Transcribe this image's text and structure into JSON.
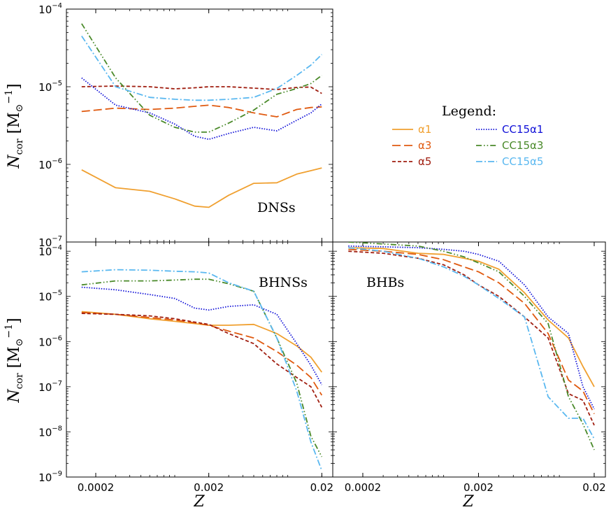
{
  "chart_data": {
    "type": "line",
    "x_scale": "log",
    "y_scale": "log",
    "xlabel": "Z",
    "ylabel": "N_cor [M_⊙^-1]",
    "ylabel_main": "N",
    "ylabel_sub": "cor",
    "ylabel_unit_open": "[M",
    "ylabel_unit_sub": "⊙",
    "ylabel_unit_sup": "−1",
    "ylabel_unit_close": "]",
    "x_ticks": [
      {
        "value": 0.0002,
        "label": "0.0002"
      },
      {
        "value": 0.002,
        "label": "0.002"
      },
      {
        "value": 0.02,
        "label": "0.02"
      }
    ],
    "legend": {
      "title": "Legend:",
      "entries": [
        {
          "key": "a1",
          "label": "α1",
          "color": "#f0a030",
          "dash": "solid"
        },
        {
          "key": "a3",
          "label": "α3",
          "color": "#e05a10",
          "dash": "long-dash"
        },
        {
          "key": "a5",
          "label": "α5",
          "color": "#a01e10",
          "dash": "short-dash"
        },
        {
          "key": "c1",
          "label": "CC15α1",
          "color": "#1010d8",
          "dash": "dotted"
        },
        {
          "key": "c3",
          "label": "CC15α3",
          "color": "#4a8a2a",
          "dash": "dash-dot-dot"
        },
        {
          "key": "c5",
          "label": "CC15α5",
          "color": "#5ab8f0",
          "dash": "dash-dot"
        }
      ]
    },
    "x": [
      0.00015,
      0.0003,
      0.0006,
      0.001,
      0.0015,
      0.002,
      0.003,
      0.005,
      0.008,
      0.012,
      0.016,
      0.02
    ],
    "panels": [
      {
        "name": "DNSs",
        "label": "DNSs",
        "ylim": [
          1e-07,
          0.0001
        ],
        "y_ticks": [
          {
            "value": 1e-07,
            "base": "10",
            "exp": "−7"
          },
          {
            "value": 1e-06,
            "base": "10",
            "exp": "−6"
          },
          {
            "value": 1e-05,
            "base": "10",
            "exp": "−5"
          },
          {
            "value": 0.0001,
            "base": "10",
            "exp": "−4"
          }
        ],
        "series": {
          "a1": [
            8.5e-07,
            5e-07,
            4.5e-07,
            3.6e-07,
            2.9e-07,
            2.8e-07,
            4e-07,
            5.7e-07,
            5.8e-07,
            7.5e-07,
            8.3e-07,
            9e-07
          ],
          "a3": [
            4.8e-06,
            5.3e-06,
            5.1e-06,
            5.3e-06,
            5.6e-06,
            5.8e-06,
            5.4e-06,
            4.6e-06,
            4.1e-06,
            5.1e-06,
            5.4e-06,
            5.5e-06
          ],
          "a5": [
            1e-05,
            1.02e-05,
            1e-05,
            9.4e-06,
            9.7e-06,
            1e-05,
            1e-05,
            9.6e-06,
            9.2e-06,
            9.8e-06,
            9.9e-06,
            8.2e-06
          ],
          "c1": [
            1.3e-05,
            5.8e-06,
            4.6e-06,
            3.3e-06,
            2.3e-06,
            2.1e-06,
            2.5e-06,
            3e-06,
            2.7e-06,
            3.7e-06,
            4.6e-06,
            6e-06
          ],
          "c3": [
            6.5e-05,
            1.3e-05,
            4.3e-06,
            3e-06,
            2.6e-06,
            2.6e-06,
            3.4e-06,
            5e-06,
            8e-06,
            9.5e-06,
            1.1e-05,
            1.4e-05
          ],
          "c5": [
            4.5e-05,
            1e-05,
            7.3e-06,
            6.9e-06,
            6.7e-06,
            6.7e-06,
            6.9e-06,
            7.3e-06,
            9.5e-06,
            1.4e-05,
            1.9e-05,
            2.6e-05
          ]
        }
      },
      {
        "name": "BHNSs",
        "label": "BHNSs",
        "ylim": [
          1e-09,
          0.00016
        ],
        "y_ticks": [
          {
            "value": 1e-09,
            "base": "10",
            "exp": "−9"
          },
          {
            "value": 1e-08,
            "base": "10",
            "exp": "−8"
          },
          {
            "value": 1e-07,
            "base": "10",
            "exp": "−7"
          },
          {
            "value": 1e-06,
            "base": "10",
            "exp": "−6"
          },
          {
            "value": 1e-05,
            "base": "10",
            "exp": "−5"
          },
          {
            "value": 0.0001,
            "base": "10",
            "exp": "−4"
          }
        ],
        "series": {
          "a1": [
            4.6e-06,
            4e-06,
            3.2e-06,
            2.8e-06,
            2.5e-06,
            2.3e-06,
            2.3e-06,
            2.4e-06,
            1.5e-06,
            8e-07,
            4.5e-07,
            2.1e-07
          ],
          "a3": [
            4.4e-06,
            4e-06,
            3.4e-06,
            3e-06,
            2.6e-06,
            2.3e-06,
            1.7e-06,
            1.2e-06,
            6e-07,
            3e-07,
            1.6e-07,
            6.5e-08
          ],
          "a5": [
            4.2e-06,
            4e-06,
            3.7e-06,
            3.2e-06,
            2.7e-06,
            2.4e-06,
            1.5e-06,
            9e-07,
            3.2e-07,
            1.6e-07,
            1e-07,
            3.5e-08
          ],
          "c1": [
            1.6e-05,
            1.4e-05,
            1.1e-05,
            9e-06,
            5.5e-06,
            5e-06,
            6e-06,
            6.5e-06,
            4e-06,
            9e-07,
            3e-07,
            1.1e-07
          ],
          "c3": [
            1.8e-05,
            2.2e-05,
            2.2e-05,
            2.3e-05,
            2.4e-05,
            2.4e-05,
            1.9e-05,
            1.3e-05,
            1.2e-06,
            1.2e-07,
            8e-09,
            2.8e-09
          ],
          "c5": [
            3.5e-05,
            3.9e-05,
            3.8e-05,
            3.6e-05,
            3.5e-05,
            3.3e-05,
            2e-05,
            1.3e-05,
            1.2e-06,
            8e-08,
            6e-09,
            1.4e-09
          ]
        }
      },
      {
        "name": "BHBs",
        "label": "BHBs",
        "ylim": [
          1e-09,
          0.00016
        ],
        "y_ticks": [],
        "series": {
          "a1": [
            0.00012,
            0.000115,
            9e-05,
            8.5e-05,
            7e-05,
            6e-05,
            4e-05,
            1.2e-05,
            3e-06,
            1.2e-06,
            2.8e-07,
            1e-07
          ],
          "a3": [
            0.00011,
            0.0001,
            8.5e-05,
            6.5e-05,
            4.5e-05,
            3.5e-05,
            2e-05,
            7e-06,
            1.5e-06,
            1.4e-07,
            8e-08,
            2.5e-08
          ],
          "a5": [
            0.0001,
            9e-05,
            7e-05,
            5e-05,
            3e-05,
            1.8e-05,
            1e-05,
            3.5e-06,
            1.2e-06,
            7e-08,
            5e-08,
            1.4e-08
          ],
          "c1": [
            0.00013,
            0.000125,
            0.00012,
            0.00011,
            0.0001,
            8.5e-05,
            6e-05,
            1.8e-05,
            3.5e-06,
            1.5e-06,
            1e-07,
            3.2e-08
          ],
          "c3": [
            0.00016,
            0.000145,
            0.00013,
            0.0001,
            7.5e-05,
            5.5e-05,
            3.5e-05,
            1e-05,
            2.5e-06,
            6e-08,
            1.5e-08,
            4e-09
          ],
          "c5": [
            0.00012,
            0.0001,
            7e-05,
            4.5e-05,
            2.8e-05,
            1.8e-05,
            9e-06,
            3.5e-06,
            6e-08,
            2e-08,
            2e-08,
            7e-09
          ]
        }
      }
    ]
  }
}
